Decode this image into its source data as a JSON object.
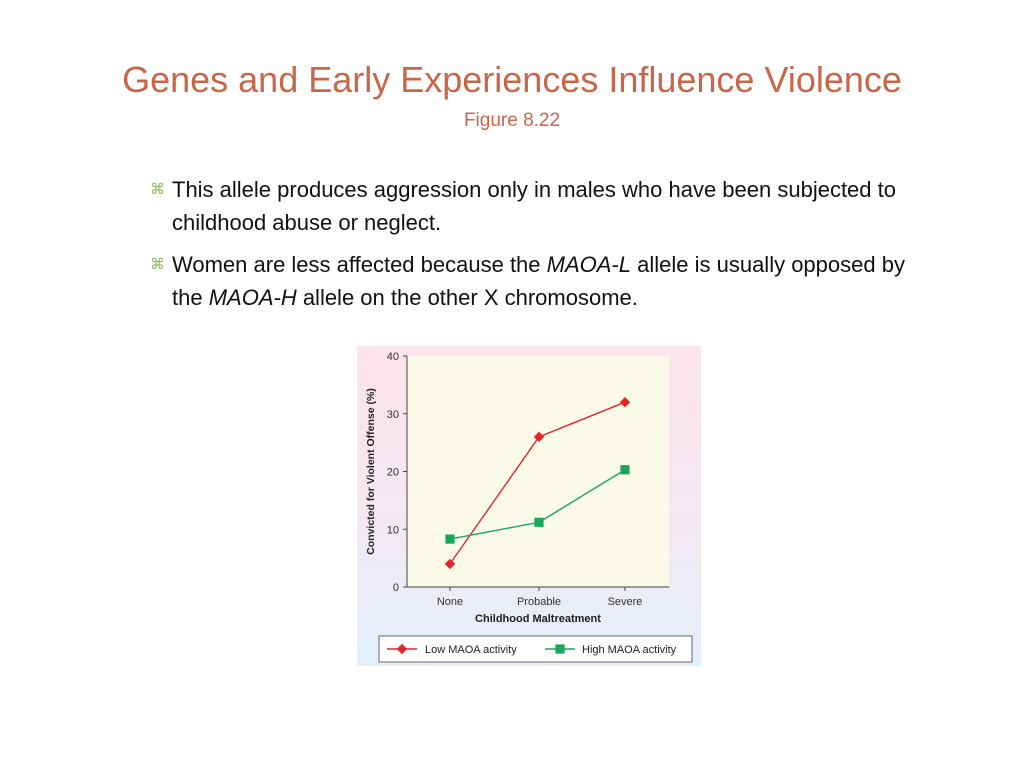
{
  "slide": {
    "title": "Genes and Early Experiences Influence Violence",
    "subtitle": "Figure 8.22"
  },
  "bullets": [
    {
      "segments": [
        {
          "text": "This allele produces aggression only in males who have been subjected to childhood abuse or neglect.",
          "italic": false
        }
      ]
    },
    {
      "segments": [
        {
          "text": "Women are less affected because the ",
          "italic": false
        },
        {
          "text": "MAOA-L",
          "italic": true
        },
        {
          "text": " allele is usually opposed by the ",
          "italic": false
        },
        {
          "text": "MAOA-H",
          "italic": true
        },
        {
          "text": " allele on the other X chromosome.",
          "italic": false
        }
      ]
    }
  ],
  "bullet_icon": "sparkle-bullet-icon",
  "chart_data": {
    "type": "line",
    "xlabel": "Childhood Maltreatment",
    "ylabel": "Convicted for Violent Offense (%)",
    "categories": [
      "None",
      "Probable",
      "Severe"
    ],
    "ylim": [
      0,
      40
    ],
    "yticks": [
      0,
      10,
      20,
      30,
      40
    ],
    "grid": false,
    "legend": "bottom",
    "series": [
      {
        "name": "Low MAOA activity",
        "values": [
          4,
          26,
          32
        ],
        "color": "#e2262b",
        "marker": "diamond"
      },
      {
        "name": "High MAOA activity",
        "values": [
          8.3,
          11.2,
          20.3
        ],
        "color": "#1aa55a",
        "marker": "square"
      }
    ],
    "plot_background": "#fcfbea"
  }
}
